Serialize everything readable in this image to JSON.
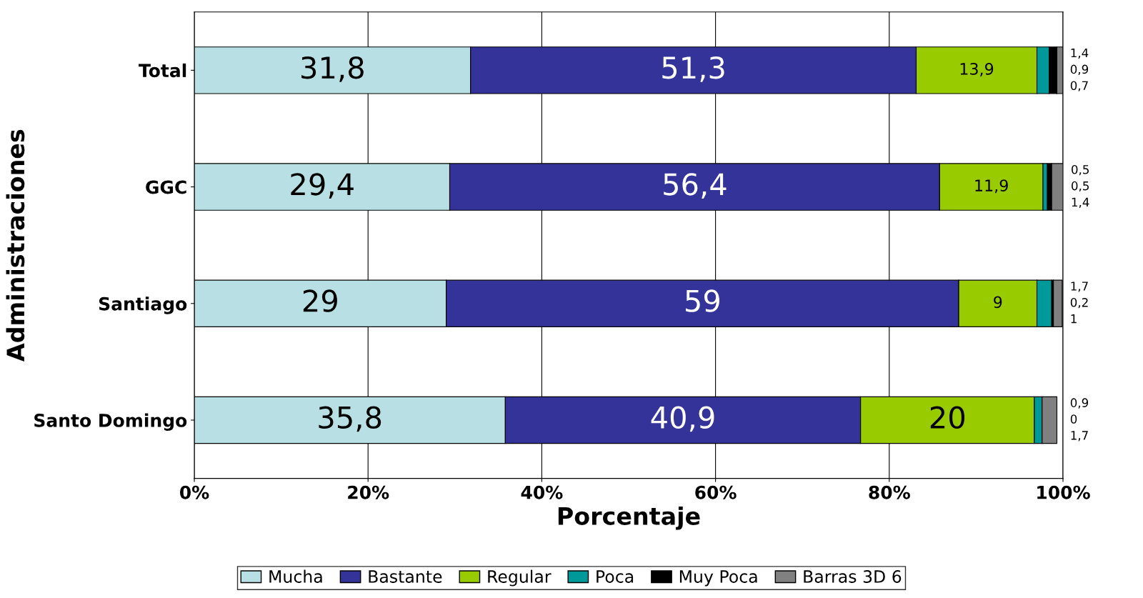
{
  "chart_data": {
    "type": "bar",
    "orientation": "horizontal",
    "stacked": true,
    "xlabel": "Porcentaje",
    "ylabel": "Administraciones",
    "categories": [
      "Total",
      "GGC",
      "Santiago",
      "Santo Domingo"
    ],
    "series": [
      {
        "name": "Mucha",
        "color": "#b8e0e4",
        "values": [
          31.8,
          29.4,
          29,
          35.8
        ],
        "value_labels": [
          "31,8",
          "29,4",
          "29",
          "35,8"
        ]
      },
      {
        "name": "Bastante",
        "color": "#333399",
        "values": [
          51.3,
          56.4,
          59,
          40.9
        ],
        "value_labels": [
          "51,3",
          "56,4",
          "59",
          "40,9"
        ]
      },
      {
        "name": "Regular",
        "color": "#99cc00",
        "values": [
          13.9,
          11.9,
          9,
          20
        ],
        "value_labels": [
          "13,9",
          "11,9",
          "9",
          "20"
        ]
      },
      {
        "name": "Poca",
        "color": "#009999",
        "values": [
          1.4,
          0.5,
          1.7,
          0.9
        ],
        "value_labels": [
          "1,4",
          "0,5",
          "1,7",
          "0,9"
        ]
      },
      {
        "name": "Muy Poca",
        "color": "#000000",
        "values": [
          0.9,
          0.5,
          0.2,
          0
        ],
        "value_labels": [
          "0,9",
          "0,5",
          "0,2",
          "0"
        ]
      },
      {
        "name": "Barras 3D 6",
        "color": "#808080",
        "values": [
          0.7,
          1.4,
          1,
          1.7
        ],
        "value_labels": [
          "0,7",
          "1,4",
          "1",
          "1,7"
        ]
      }
    ],
    "xlim": [
      0,
      100
    ],
    "xticks": [
      {
        "value": 0,
        "label": "0%"
      },
      {
        "value": 20,
        "label": "20%"
      },
      {
        "value": 40,
        "label": "40%"
      },
      {
        "value": 60,
        "label": "60%"
      },
      {
        "value": 80,
        "label": "80%"
      },
      {
        "value": 100,
        "label": "100%"
      }
    ],
    "grid": "x",
    "legend": "bottom"
  }
}
